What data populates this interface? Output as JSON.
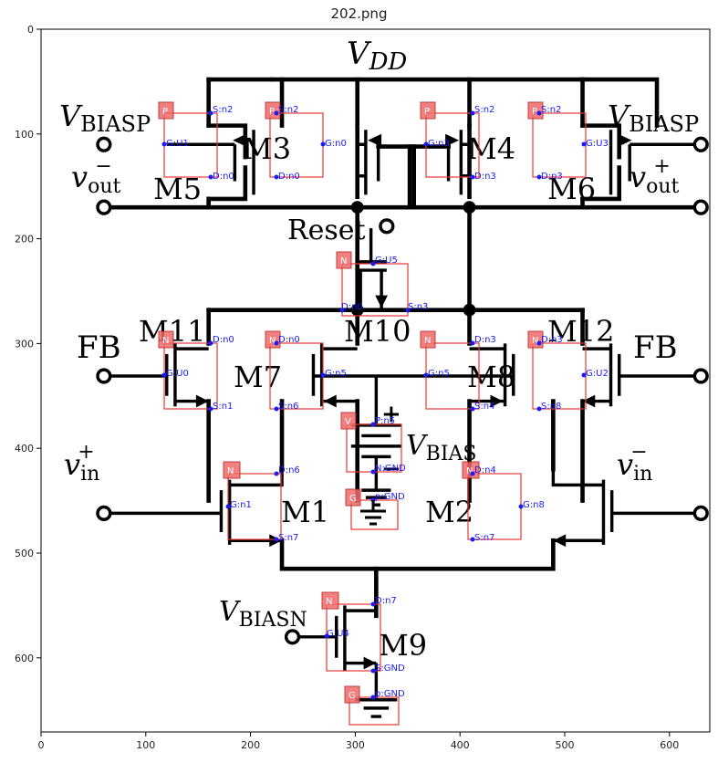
{
  "title": "202.png",
  "axes": {
    "x_ticks": [
      "0",
      "100",
      "200",
      "300",
      "400",
      "500",
      "600"
    ],
    "y_ticks": [
      "0",
      "100",
      "200",
      "300",
      "400",
      "500",
      "600"
    ]
  },
  "labels": {
    "vdd_main": "V",
    "vdd_sub": "DD",
    "vbiasp_left_main": "V",
    "vbiasp_left_sub": "BIASP",
    "vbiasp_right_main": "V",
    "vbiasp_right_sub": "BIASP",
    "vout_minus_main": "v",
    "vout_minus_sub": "out",
    "vout_minus_sup": "−",
    "vout_plus_main": "v",
    "vout_plus_sub": "out",
    "vout_plus_sup": "+",
    "reset": "Reset",
    "fb_left": "FB",
    "fb_right": "FB",
    "vin_plus_main": "v",
    "vin_plus_sub": "in",
    "vin_plus_sup": "+",
    "vin_minus_main": "v",
    "vin_minus_sub": "in",
    "vin_minus_sup": "−",
    "vbias_main": "V",
    "vbias_sub": "BIAS",
    "vbiasn_main": "V",
    "vbiasn_sub": "BIASN",
    "plus_sign": "+",
    "minus_sign": "−",
    "m1": "M1",
    "m2": "M2",
    "m3": "M3",
    "m4": "M4",
    "m5": "M5",
    "m6": "M6",
    "m7": "M7",
    "m8": "M8",
    "m9": "M9",
    "m10": "M10",
    "m11": "M11",
    "m12": "M12"
  },
  "annotations": [
    {
      "id": "m5",
      "tag": "P",
      "pins": [
        "S:n2",
        "G:U1",
        "D:n0"
      ]
    },
    {
      "id": "m3",
      "tag": "P",
      "pins": [
        "S:n2",
        "G:n0",
        "D:n0"
      ]
    },
    {
      "id": "m4",
      "tag": "P",
      "pins": [
        "S:n2",
        "G:n3",
        "D:n3"
      ]
    },
    {
      "id": "m6",
      "tag": "P",
      "pins": [
        "S:n2",
        "G:U3",
        "D:n3"
      ]
    },
    {
      "id": "m10",
      "tag": "N",
      "pins": [
        "G:U5",
        "D:n0",
        "S:n3"
      ]
    },
    {
      "id": "m11",
      "tag": "N",
      "pins": [
        "D:n0",
        "G:U0",
        "S:n1"
      ]
    },
    {
      "id": "m7",
      "tag": "N",
      "pins": [
        "D:n0",
        "G:n5",
        "S:n6"
      ]
    },
    {
      "id": "m8",
      "tag": "N",
      "pins": [
        "D:n3",
        "G:n5",
        "S:n4"
      ]
    },
    {
      "id": "m12",
      "tag": "N",
      "pins": [
        "D:n3",
        "G:U2",
        "S:n8"
      ]
    },
    {
      "id": "vbias",
      "tag": "V",
      "pins": [
        "P:n5",
        "N:GND"
      ]
    },
    {
      "id": "gnd1",
      "tag": "G",
      "pins": [
        "p:GND"
      ]
    },
    {
      "id": "m1",
      "tag": "N",
      "pins": [
        "D:n6",
        "G:n1",
        "S:n7"
      ]
    },
    {
      "id": "m2",
      "tag": "N",
      "pins": [
        "D:n4",
        "G:n8",
        "S:n7"
      ]
    },
    {
      "id": "m9",
      "tag": "N",
      "pins": [
        "D:n7",
        "G:U4",
        "S:GND"
      ]
    },
    {
      "id": "gnd2",
      "tag": "G",
      "pins": [
        "p:GND"
      ]
    }
  ]
}
